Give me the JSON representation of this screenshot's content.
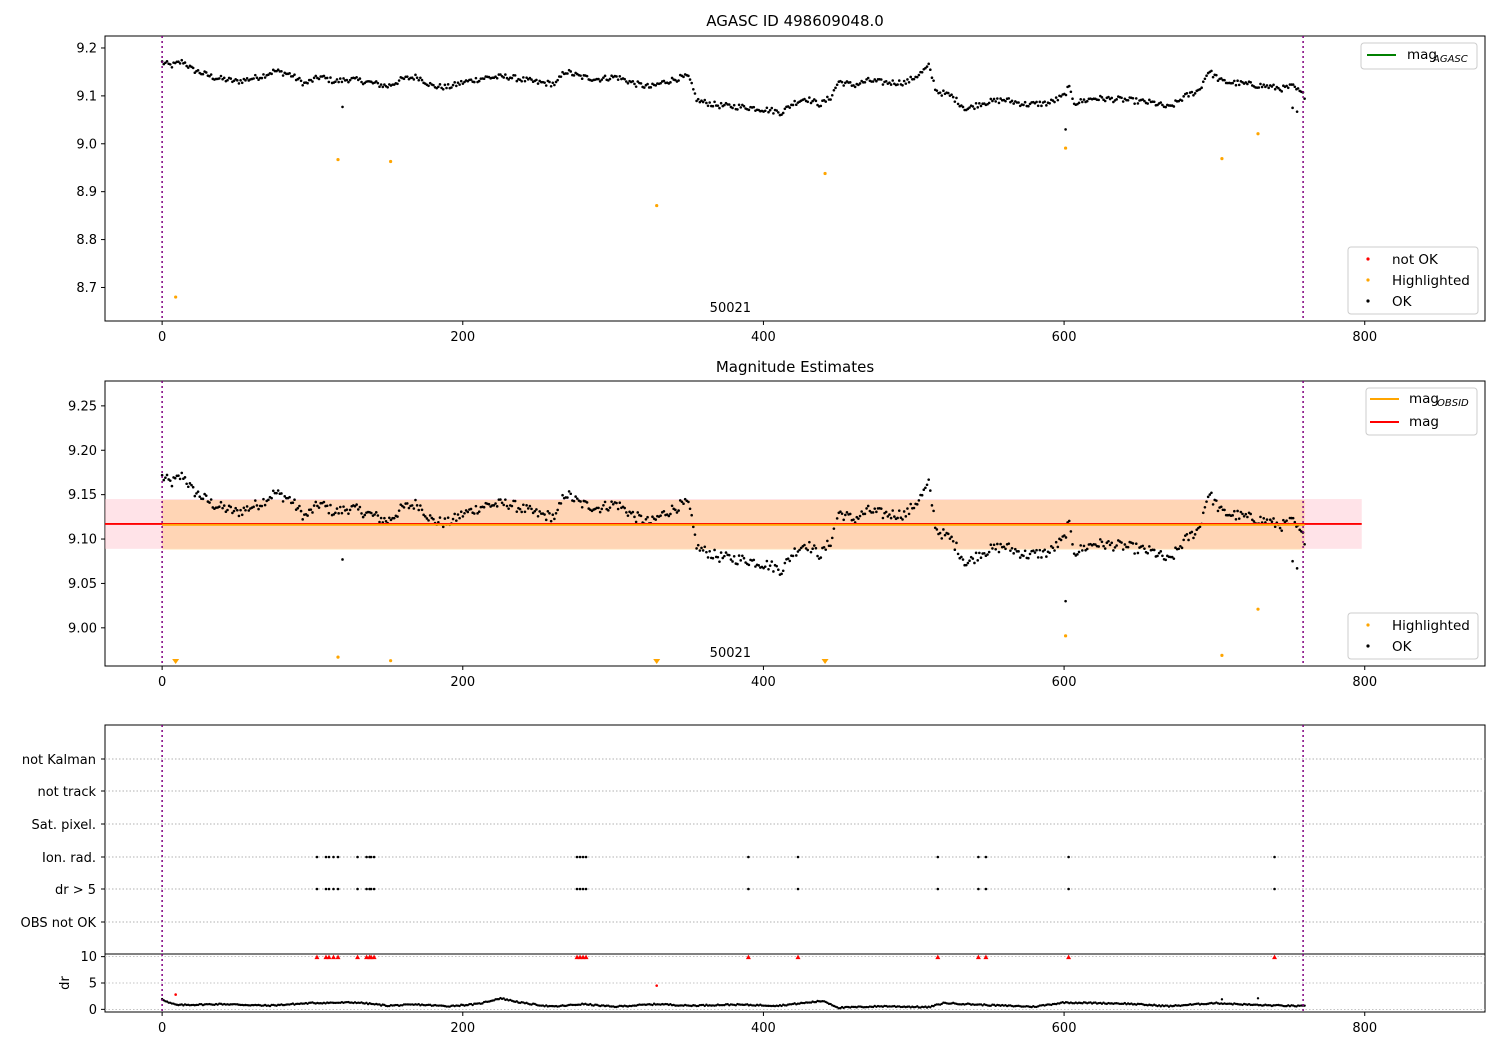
{
  "chart_data": [
    {
      "type": "scatter",
      "title": "AGASC ID 498609048.0",
      "xlim": [
        -38,
        880
      ],
      "ylim": [
        8.63,
        9.225
      ],
      "xticks": [
        0,
        200,
        400,
        600,
        800
      ],
      "yticks": [
        8.7,
        8.8,
        8.9,
        9.0,
        9.1,
        9.2
      ],
      "ytick_labels": [
        "8.7",
        "8.8",
        "8.9",
        "9.0",
        "9.1",
        "9.2"
      ],
      "vlines": [
        0,
        759
      ],
      "annotation": {
        "text": "50021",
        "x": 378
      },
      "legend_lines": [
        {
          "main": "mag",
          "sub": "AGASC",
          "color": "#008000"
        }
      ],
      "legend_points": [
        {
          "name": "not OK",
          "color": "#ff0000"
        },
        {
          "name": "Highlighted",
          "color": "#ffa500"
        },
        {
          "name": "OK",
          "color": "#000000"
        }
      ],
      "highlighted": {
        "x": [
          9,
          117,
          152,
          329,
          441,
          601,
          705,
          729
        ],
        "y": [
          8.68,
          8.967,
          8.963,
          8.871,
          8.938,
          8.991,
          8.969,
          9.021
        ]
      },
      "ok_outliers": {
        "x": [
          120,
          601,
          752,
          755
        ],
        "y": [
          9.077,
          9.03,
          9.075,
          9.067
        ]
      },
      "ok_series": {
        "x_start": 0,
        "x_end": 760,
        "anchors": [
          [
            0,
            9.17
          ],
          [
            6,
            9.163
          ],
          [
            14,
            9.172
          ],
          [
            20,
            9.155
          ],
          [
            35,
            9.138
          ],
          [
            50,
            9.13
          ],
          [
            65,
            9.14
          ],
          [
            75,
            9.152
          ],
          [
            85,
            9.145
          ],
          [
            95,
            9.125
          ],
          [
            105,
            9.14
          ],
          [
            115,
            9.13
          ],
          [
            125,
            9.135
          ],
          [
            135,
            9.13
          ],
          [
            150,
            9.12
          ],
          [
            160,
            9.135
          ],
          [
            170,
            9.14
          ],
          [
            180,
            9.12
          ],
          [
            190,
            9.118
          ],
          [
            200,
            9.128
          ],
          [
            215,
            9.138
          ],
          [
            230,
            9.14
          ],
          [
            250,
            9.128
          ],
          [
            262,
            9.125
          ],
          [
            268,
            9.152
          ],
          [
            278,
            9.14
          ],
          [
            290,
            9.135
          ],
          [
            302,
            9.14
          ],
          [
            315,
            9.125
          ],
          [
            325,
            9.118
          ],
          [
            333,
            9.128
          ],
          [
            345,
            9.138
          ],
          [
            350,
            9.14
          ],
          [
            356,
            9.09
          ],
          [
            370,
            9.08
          ],
          [
            390,
            9.076
          ],
          [
            405,
            9.07
          ],
          [
            412,
            9.065
          ],
          [
            420,
            9.085
          ],
          [
            428,
            9.095
          ],
          [
            438,
            9.082
          ],
          [
            445,
            9.098
          ],
          [
            450,
            9.13
          ],
          [
            460,
            9.122
          ],
          [
            470,
            9.132
          ],
          [
            480,
            9.128
          ],
          [
            495,
            9.128
          ],
          [
            505,
            9.148
          ],
          [
            510,
            9.162
          ],
          [
            515,
            9.11
          ],
          [
            525,
            9.1
          ],
          [
            535,
            9.072
          ],
          [
            545,
            9.085
          ],
          [
            560,
            9.092
          ],
          [
            575,
            9.082
          ],
          [
            590,
            9.085
          ],
          [
            600,
            9.1
          ],
          [
            603,
            9.118
          ],
          [
            607,
            9.085
          ],
          [
            620,
            9.095
          ],
          [
            640,
            9.092
          ],
          [
            660,
            9.085
          ],
          [
            670,
            9.075
          ],
          [
            680,
            9.098
          ],
          [
            690,
            9.112
          ],
          [
            696,
            9.152
          ],
          [
            705,
            9.13
          ],
          [
            720,
            9.125
          ],
          [
            735,
            9.12
          ],
          [
            745,
            9.115
          ],
          [
            752,
            9.12
          ],
          [
            760,
            9.1
          ]
        ],
        "noise": 0.006,
        "count": 700
      }
    },
    {
      "type": "scatter",
      "title": "Magnitude Estimates",
      "xlim": [
        -38,
        880
      ],
      "ylim": [
        8.957,
        9.278
      ],
      "xticks": [
        0,
        200,
        400,
        600,
        800
      ],
      "yticks": [
        9.0,
        9.05,
        9.1,
        9.15,
        9.2,
        9.25
      ],
      "ytick_labels": [
        "9.00",
        "9.05",
        "9.10",
        "9.15",
        "9.20",
        "9.25"
      ],
      "vlines": [
        0,
        759
      ],
      "annotation": {
        "text": "50021",
        "x": 378
      },
      "mag_line": {
        "y": 9.117,
        "color": "#ff0000"
      },
      "mag_band": {
        "y0": 9.089,
        "y1": 9.145,
        "color": "#ffc0cb"
      },
      "mag_obsid": {
        "y": 9.116,
        "x0": 0,
        "x1": 760,
        "band_y0": 9.088,
        "band_y1": 9.144,
        "color": "#ffa500"
      },
      "legend_lines": [
        {
          "main": "mag",
          "sub": "OBSID",
          "color": "#ffa500"
        },
        {
          "main": "mag",
          "sub": "",
          "color": "#ff0000"
        }
      ],
      "legend_points": [
        {
          "name": "Highlighted",
          "color": "#ffa500"
        },
        {
          "name": "OK",
          "color": "#000000"
        }
      ],
      "highlighted": {
        "x": [
          117,
          152,
          601,
          705,
          729
        ],
        "y": [
          8.967,
          8.963,
          8.991,
          8.969,
          9.021
        ]
      },
      "highlighted_below_range_x": [
        9,
        329,
        441
      ],
      "ok_outliers": {
        "x": [
          120,
          601,
          752,
          755
        ],
        "y": [
          9.077,
          9.03,
          9.075,
          9.067
        ]
      }
    },
    {
      "type": "scatter",
      "xlim": [
        -38,
        880
      ],
      "flag_labels": [
        "not Kalman",
        "not track",
        "Sat. pixel.",
        "Ion. rad.",
        "dr > 5",
        "OBS not OK"
      ],
      "flags": {
        "Ion. rad.": [
          103,
          109,
          111,
          114,
          117,
          130,
          136,
          138,
          139,
          141,
          276,
          278,
          280,
          282,
          390,
          423,
          516,
          543,
          548,
          603,
          740
        ],
        "dr > 5": [
          103,
          109,
          111,
          114,
          117,
          130,
          136,
          138,
          139,
          141,
          276,
          278,
          280,
          282,
          390,
          423,
          516,
          543,
          548,
          603,
          740
        ]
      },
      "vlines": [
        0,
        759
      ]
    },
    {
      "type": "scatter",
      "xlim": [
        -38,
        880
      ],
      "ylim": [
        -0.5,
        10.5
      ],
      "yticks": [
        0,
        5,
        10
      ],
      "ytick_labels": [
        "0",
        "5",
        "10"
      ],
      "xticks": [
        0,
        200,
        400,
        600,
        800
      ],
      "ylabel": "dr",
      "clipped_at_10_x": [
        103,
        109,
        111,
        114,
        117,
        130,
        136,
        138,
        139,
        141,
        276,
        278,
        280,
        282,
        390,
        423,
        516,
        543,
        548,
        603,
        740
      ],
      "notok_points": {
        "x": [
          9,
          329
        ],
        "y": [
          2.8,
          4.5
        ]
      },
      "ok_series": {
        "anchors": [
          [
            0,
            2.0
          ],
          [
            4,
            1.3
          ],
          [
            10,
            0.8
          ],
          [
            40,
            1.0
          ],
          [
            70,
            0.7
          ],
          [
            100,
            1.2
          ],
          [
            130,
            1.3
          ],
          [
            150,
            0.7
          ],
          [
            170,
            0.9
          ],
          [
            190,
            0.6
          ],
          [
            210,
            1.0
          ],
          [
            225,
            2.1
          ],
          [
            240,
            1.2
          ],
          [
            260,
            0.5
          ],
          [
            280,
            1.0
          ],
          [
            300,
            0.5
          ],
          [
            330,
            1.0
          ],
          [
            350,
            0.7
          ],
          [
            380,
            0.9
          ],
          [
            410,
            0.7
          ],
          [
            440,
            1.6
          ],
          [
            450,
            0.3
          ],
          [
            480,
            0.6
          ],
          [
            510,
            0.4
          ],
          [
            520,
            1.2
          ],
          [
            550,
            0.8
          ],
          [
            580,
            0.5
          ],
          [
            600,
            1.3
          ],
          [
            640,
            1.1
          ],
          [
            670,
            0.6
          ],
          [
            700,
            1.2
          ],
          [
            730,
            0.8
          ],
          [
            760,
            0.6
          ]
        ],
        "noise": 0.12,
        "extra": {
          "x": [
            705,
            729
          ],
          "y": [
            1.9,
            2.1
          ]
        }
      },
      "vlines": [
        0,
        759
      ]
    }
  ]
}
